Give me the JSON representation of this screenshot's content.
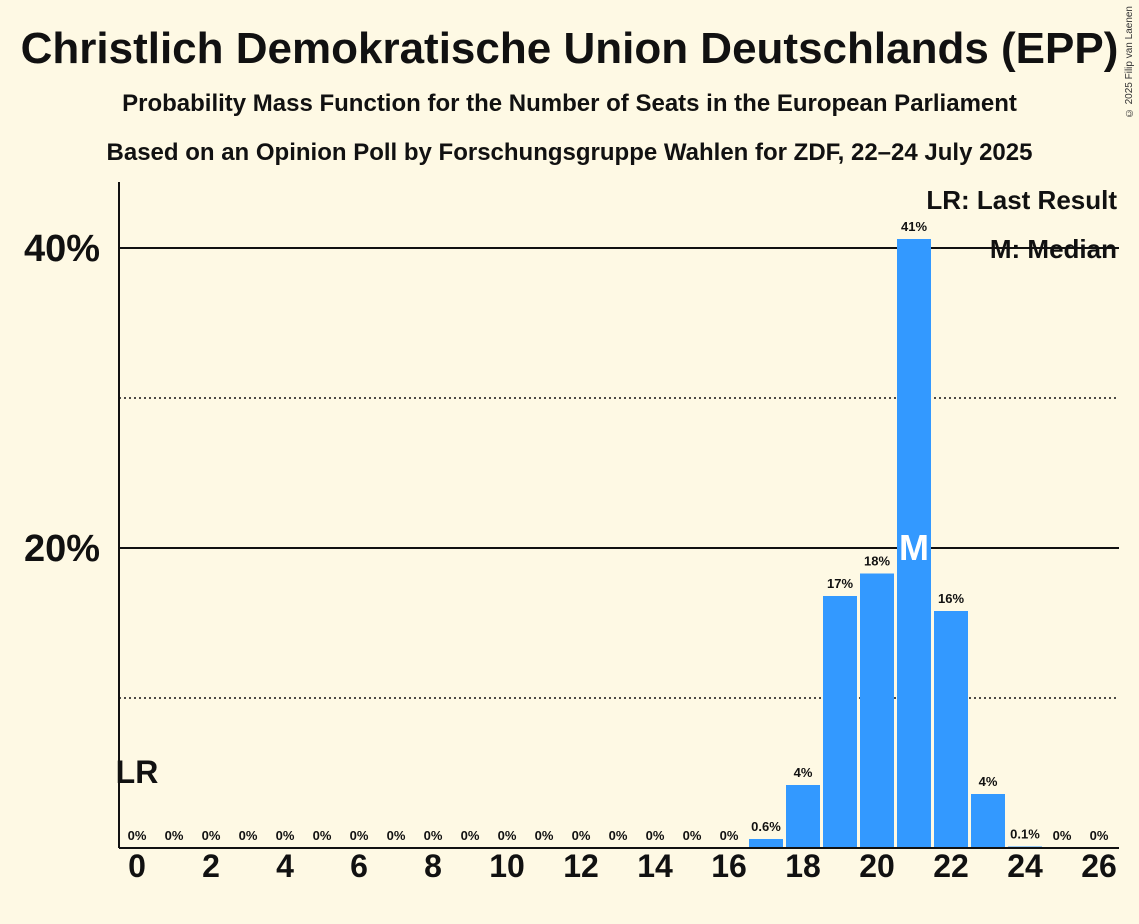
{
  "header": {
    "title": "Christlich Demokratische Union Deutschlands (EPP)",
    "subtitle": "Probability Mass Function for the Number of Seats in the European Parliament",
    "source": "Based on an Opinion Poll by Forschungsgruppe Wahlen for ZDF, 22–24 July 2025",
    "copyright": "© 2025 Filip van Laenen"
  },
  "legend": {
    "last_result": "LR: Last Result",
    "median": "M: Median"
  },
  "colors": {
    "bar": "#3399ff",
    "background": "#fef9e4"
  },
  "chart_data": {
    "type": "bar",
    "title": "Christlich Demokratische Union Deutschlands (EPP)",
    "xlabel": "",
    "ylabel": "",
    "x": [
      0,
      1,
      2,
      3,
      4,
      5,
      6,
      7,
      8,
      9,
      10,
      11,
      12,
      13,
      14,
      15,
      16,
      17,
      18,
      19,
      20,
      21,
      22,
      23,
      24,
      25,
      26
    ],
    "values": [
      0,
      0,
      0,
      0,
      0,
      0,
      0,
      0,
      0,
      0,
      0,
      0,
      0,
      0,
      0,
      0,
      0,
      0.6,
      4.2,
      16.8,
      18.3,
      40.6,
      15.8,
      3.6,
      0.1,
      0,
      0
    ],
    "labels": [
      "0%",
      "0%",
      "0%",
      "0%",
      "0%",
      "0%",
      "0%",
      "0%",
      "0%",
      "0%",
      "0%",
      "0%",
      "0%",
      "0%",
      "0%",
      "0%",
      "0%",
      "0.6%",
      "4%",
      "17%",
      "18%",
      "41%",
      "16%",
      "4%",
      "0.1%",
      "0%",
      "0%"
    ],
    "xticks": [
      "0",
      "2",
      "4",
      "6",
      "8",
      "10",
      "12",
      "14",
      "16",
      "18",
      "20",
      "22",
      "24",
      "26"
    ],
    "yticks": [
      {
        "value": 20,
        "label": "20%"
      },
      {
        "value": 40,
        "label": "40%"
      }
    ],
    "minor_gridlines": [
      10,
      30
    ],
    "ylim": [
      0,
      44.5
    ],
    "last_result_seat": 0,
    "last_result_label": "LR",
    "median_seat": 21,
    "median_label": "M",
    "legend_position": "top-right"
  }
}
